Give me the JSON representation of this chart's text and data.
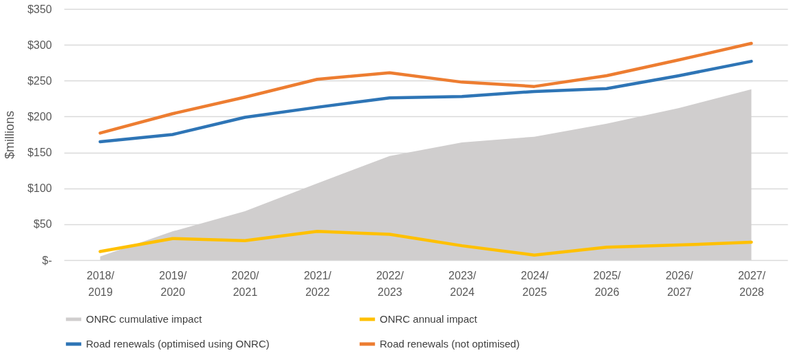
{
  "chart_data": {
    "type": "line",
    "ylabel": "$millions",
    "categories": [
      "2018/\n2019",
      "2019/\n2020",
      "2020/\n2021",
      "2021/\n2022",
      "2022/\n2023",
      "2023/\n2024",
      "2024/\n2025",
      "2025/\n2026",
      "2026/\n2027",
      "2027/\n2028"
    ],
    "series": [
      {
        "name": "ONRC cumulative impact",
        "type": "area",
        "color": "#d0cece",
        "values": [
          5,
          40,
          68,
          107,
          145,
          164,
          172,
          190,
          212,
          238
        ]
      },
      {
        "name": "ONRC annual impact",
        "color": "#ffc000",
        "values": [
          12,
          30,
          27,
          40,
          36,
          20,
          7,
          18,
          21,
          25
        ]
      },
      {
        "name": "Road renewals (optimised using ONRC)",
        "color": "#2e75b6",
        "values": [
          165,
          175,
          199,
          213,
          226,
          228,
          235,
          239,
          257,
          277
        ]
      },
      {
        "name": "Road renewals (not optimised)",
        "color": "#ed7d31",
        "values": [
          177,
          204,
          227,
          252,
          261,
          248,
          242,
          257,
          279,
          302
        ]
      }
    ],
    "ylim": [
      0,
      350
    ],
    "yticks": [
      {
        "value": 0,
        "label": "$-"
      },
      {
        "value": 50,
        "label": "$50"
      },
      {
        "value": 100,
        "label": "$100"
      },
      {
        "value": 150,
        "label": "$150"
      },
      {
        "value": 200,
        "label": "$200"
      },
      {
        "value": 250,
        "label": "$250"
      },
      {
        "value": 300,
        "label": "$300"
      },
      {
        "value": 350,
        "label": "$350"
      }
    ],
    "grid": "y",
    "legend": "bottom",
    "line_style": "solid",
    "marker": "none"
  }
}
